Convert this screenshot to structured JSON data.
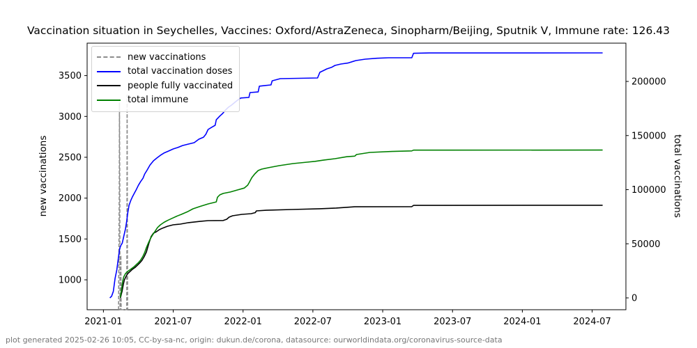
{
  "title": "Vaccination situation in Seychelles, Vaccines: Oxford/AstraZeneca, Sinopharm/Beijing, Sputnik V, Immune rate: 126.43",
  "footer": "plot generated 2025-02-26 10:05, CC-by-sa-nc, origin: dukun.de/corona, datasource: ourworldindata.org/coronavirus-source-data",
  "chart_data": {
    "type": "line",
    "title": "Vaccination situation in Seychelles, Vaccines: Oxford/AstraZeneca, Sinopharm/Beijing, Sputnik V, Immune rate: 126.43",
    "grid": false,
    "legend_position": "upper-left",
    "x_axis": {
      "unit": "months since 2021-01",
      "tick_labels": [
        "2021-01",
        "2021-07",
        "2022-01",
        "2022-07",
        "2023-01",
        "2023-07",
        "2024-01",
        "2024-07"
      ],
      "tick_months": [
        0,
        6,
        12,
        18,
        24,
        30,
        36,
        42
      ],
      "range_months": [
        -1.4,
        44.9
      ]
    },
    "left_axis": {
      "label": "new vaccinations",
      "ticks": [
        1000,
        1500,
        2000,
        2500,
        3000,
        3500
      ],
      "range": [
        634,
        3897
      ]
    },
    "right_axis": {
      "label": "total vaccinations",
      "ticks": [
        0,
        50000,
        100000,
        150000,
        200000
      ],
      "range": [
        -10930,
        235375
      ]
    },
    "series": [
      {
        "name": "new vaccinations",
        "axis": "left",
        "color": "#8c8c8c",
        "style": "dashed",
        "points": [
          [
            1.3,
            300
          ],
          [
            1.36,
            2080
          ],
          [
            1.38,
            3165
          ],
          [
            1.41,
            2080
          ],
          [
            1.43,
            300
          ],
          [
            1.48,
            300
          ],
          [
            1.5,
            1300
          ],
          [
            1.52,
            300
          ],
          [
            2.0,
            300
          ],
          [
            2.02,
            1390
          ],
          [
            2.04,
            3260
          ],
          [
            2.06,
            1390
          ],
          [
            2.08,
            300
          ]
        ]
      },
      {
        "name": "total vaccination doses",
        "axis": "right",
        "color": "#0000ff",
        "style": "solid",
        "points": [
          [
            0.55,
            0
          ],
          [
            0.7,
            1500
          ],
          [
            0.85,
            6000
          ],
          [
            1.0,
            18000
          ],
          [
            1.15,
            26000
          ],
          [
            1.3,
            38000
          ],
          [
            1.4,
            45500
          ],
          [
            1.5,
            48500
          ],
          [
            1.62,
            50600
          ],
          [
            1.75,
            57000
          ],
          [
            1.9,
            64000
          ],
          [
            2.0,
            71000
          ],
          [
            2.1,
            79000
          ],
          [
            2.2,
            85500
          ],
          [
            2.35,
            90000
          ],
          [
            2.5,
            93500
          ],
          [
            2.65,
            96500
          ],
          [
            2.8,
            99500
          ],
          [
            3.0,
            104000
          ],
          [
            3.2,
            107500
          ],
          [
            3.4,
            110500
          ],
          [
            3.55,
            114500
          ],
          [
            3.75,
            118000
          ],
          [
            4.0,
            122800
          ],
          [
            4.3,
            126700
          ],
          [
            4.6,
            129300
          ],
          [
            4.9,
            131800
          ],
          [
            5.2,
            133800
          ],
          [
            5.6,
            135700
          ],
          [
            6.0,
            137600
          ],
          [
            6.4,
            139000
          ],
          [
            6.8,
            140800
          ],
          [
            7.3,
            142100
          ],
          [
            7.8,
            143400
          ],
          [
            8.2,
            146600
          ],
          [
            8.6,
            148500
          ],
          [
            8.8,
            151100
          ],
          [
            9.0,
            155600
          ],
          [
            9.3,
            157600
          ],
          [
            9.6,
            159500
          ],
          [
            9.7,
            164600
          ],
          [
            10.0,
            168000
          ],
          [
            10.25,
            170400
          ],
          [
            10.5,
            173700
          ],
          [
            10.75,
            176200
          ],
          [
            11.0,
            178100
          ],
          [
            11.3,
            180700
          ],
          [
            11.6,
            183300
          ],
          [
            11.8,
            184700
          ],
          [
            12.5,
            185200
          ],
          [
            12.6,
            189700
          ],
          [
            13.3,
            190300
          ],
          [
            13.4,
            195600
          ],
          [
            14.4,
            196800
          ],
          [
            14.5,
            200600
          ],
          [
            15.2,
            202600
          ],
          [
            18.4,
            203200
          ],
          [
            18.6,
            208400
          ],
          [
            18.9,
            210000
          ],
          [
            19.2,
            211600
          ],
          [
            19.6,
            213000
          ],
          [
            19.9,
            214800
          ],
          [
            20.4,
            216100
          ],
          [
            21.0,
            217000
          ],
          [
            21.7,
            219300
          ],
          [
            22.5,
            220600
          ],
          [
            23.5,
            221400
          ],
          [
            24.5,
            221900
          ],
          [
            26.5,
            221900
          ],
          [
            26.65,
            226000
          ],
          [
            28.0,
            226300
          ],
          [
            42.9,
            226400
          ]
        ]
      },
      {
        "name": "people fully vaccinated",
        "axis": "right",
        "color": "#000000",
        "style": "solid",
        "points": [
          [
            1.45,
            0
          ],
          [
            1.6,
            6000
          ],
          [
            1.7,
            12000
          ],
          [
            1.8,
            16500
          ],
          [
            1.95,
            20000
          ],
          [
            2.1,
            22500
          ],
          [
            2.3,
            24500
          ],
          [
            2.5,
            26500
          ],
          [
            2.7,
            28000
          ],
          [
            2.9,
            30000
          ],
          [
            3.1,
            32000
          ],
          [
            3.3,
            34500
          ],
          [
            3.5,
            38000
          ],
          [
            3.7,
            42500
          ],
          [
            3.9,
            50200
          ],
          [
            4.1,
            56600
          ],
          [
            4.3,
            59800
          ],
          [
            4.55,
            61100
          ],
          [
            4.8,
            63000
          ],
          [
            5.1,
            64500
          ],
          [
            5.5,
            66200
          ],
          [
            6.0,
            67500
          ],
          [
            6.6,
            68200
          ],
          [
            7.3,
            69500
          ],
          [
            8.3,
            70700
          ],
          [
            9.0,
            71400
          ],
          [
            10.3,
            71500
          ],
          [
            10.6,
            72700
          ],
          [
            10.8,
            74600
          ],
          [
            11.1,
            75900
          ],
          [
            11.9,
            77200
          ],
          [
            12.7,
            77800
          ],
          [
            13.05,
            78800
          ],
          [
            13.15,
            80400
          ],
          [
            14.0,
            81000
          ],
          [
            16.2,
            81700
          ],
          [
            18.6,
            82400
          ],
          [
            20.0,
            83000
          ],
          [
            21.6,
            84200
          ],
          [
            26.5,
            84300
          ],
          [
            26.65,
            85500
          ],
          [
            42.9,
            85600
          ]
        ]
      },
      {
        "name": "total immune",
        "axis": "right",
        "color": "#008000",
        "style": "solid",
        "points": [
          [
            1.45,
            500
          ],
          [
            1.55,
            7000
          ],
          [
            1.65,
            15000
          ],
          [
            1.75,
            19500
          ],
          [
            1.9,
            22500
          ],
          [
            2.1,
            24500
          ],
          [
            2.35,
            26500
          ],
          [
            2.6,
            28500
          ],
          [
            2.8,
            30500
          ],
          [
            3.0,
            32500
          ],
          [
            3.2,
            35000
          ],
          [
            3.4,
            38500
          ],
          [
            3.55,
            42000
          ],
          [
            3.7,
            46500
          ],
          [
            3.85,
            50500
          ],
          [
            4.05,
            55000
          ],
          [
            4.25,
            58500
          ],
          [
            4.45,
            61800
          ],
          [
            4.65,
            65000
          ],
          [
            4.9,
            67500
          ],
          [
            5.2,
            69800
          ],
          [
            5.5,
            71500
          ],
          [
            5.9,
            73500
          ],
          [
            6.3,
            75500
          ],
          [
            6.7,
            77200
          ],
          [
            7.2,
            79500
          ],
          [
            7.7,
            82300
          ],
          [
            8.3,
            84500
          ],
          [
            9.0,
            86800
          ],
          [
            9.7,
            88700
          ],
          [
            9.8,
            93000
          ],
          [
            10.0,
            95200
          ],
          [
            10.3,
            96500
          ],
          [
            10.9,
            97800
          ],
          [
            11.5,
            99700
          ],
          [
            12.1,
            101500
          ],
          [
            12.4,
            104200
          ],
          [
            12.55,
            107000
          ],
          [
            12.75,
            111000
          ],
          [
            13.0,
            114500
          ],
          [
            13.3,
            117700
          ],
          [
            13.6,
            119000
          ],
          [
            14.2,
            120300
          ],
          [
            15.1,
            122200
          ],
          [
            16.3,
            124100
          ],
          [
            17.5,
            125400
          ],
          [
            18.2,
            126200
          ],
          [
            18.9,
            127300
          ],
          [
            19.9,
            128600
          ],
          [
            20.9,
            130400
          ],
          [
            21.6,
            131000
          ],
          [
            21.75,
            132500
          ],
          [
            22.9,
            134400
          ],
          [
            24.8,
            135300
          ],
          [
            26.5,
            135800
          ],
          [
            26.65,
            136500
          ],
          [
            42.9,
            136600
          ]
        ]
      }
    ]
  }
}
